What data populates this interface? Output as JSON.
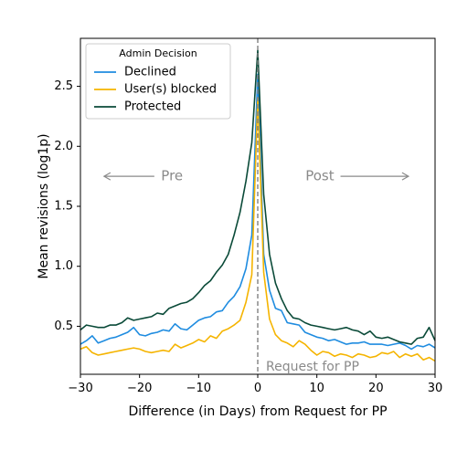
{
  "chart_data": {
    "type": "line",
    "xlabel": "Difference (in Days) from Request for PP",
    "ylabel": "Mean revisions (log1p)",
    "xlim": [
      -30,
      30
    ],
    "ylim": [
      0.1,
      2.9
    ],
    "xticks": [
      -30,
      -20,
      -10,
      0,
      10,
      20,
      30
    ],
    "xtick_labels": [
      "−30",
      "−20",
      "−10",
      "0",
      "10",
      "20",
      "30"
    ],
    "yticks": [
      0.5,
      1.0,
      1.5,
      2.0,
      2.5
    ],
    "ytick_labels": [
      "0.5",
      "1.0",
      "1.5",
      "2.0",
      "2.5"
    ],
    "grid": false,
    "legend": {
      "title": "Admin Decision",
      "placement": "top-left"
    },
    "annotations": {
      "pre": "Pre",
      "post": "Post",
      "request": "Request for PP"
    },
    "x": [
      -30,
      -29,
      -28,
      -27,
      -26,
      -25,
      -24,
      -23,
      -22,
      -21,
      -20,
      -19,
      -18,
      -17,
      -16,
      -15,
      -14,
      -13,
      -12,
      -11,
      -10,
      -9,
      -8,
      -7,
      -6,
      -5,
      -4,
      -3,
      -2,
      -1,
      0,
      1,
      2,
      3,
      4,
      5,
      6,
      7,
      8,
      9,
      10,
      11,
      12,
      13,
      14,
      15,
      16,
      17,
      18,
      19,
      20,
      21,
      22,
      23,
      24,
      25,
      26,
      27,
      28,
      29,
      30
    ],
    "series": [
      {
        "name": "Declined",
        "color": "#1f8ce0",
        "values": [
          0.35,
          0.38,
          0.42,
          0.36,
          0.38,
          0.4,
          0.41,
          0.43,
          0.45,
          0.49,
          0.43,
          0.42,
          0.44,
          0.45,
          0.47,
          0.46,
          0.52,
          0.48,
          0.47,
          0.51,
          0.55,
          0.57,
          0.58,
          0.62,
          0.63,
          0.7,
          0.75,
          0.83,
          0.98,
          1.26,
          2.6,
          1.1,
          0.8,
          0.65,
          0.63,
          0.53,
          0.52,
          0.51,
          0.45,
          0.43,
          0.41,
          0.4,
          0.38,
          0.39,
          0.37,
          0.35,
          0.36,
          0.36,
          0.37,
          0.35,
          0.35,
          0.35,
          0.34,
          0.35,
          0.36,
          0.34,
          0.31,
          0.34,
          0.33,
          0.35,
          0.32
        ]
      },
      {
        "name": "User(s) blocked",
        "color": "#f5b400",
        "values": [
          0.31,
          0.33,
          0.28,
          0.26,
          0.27,
          0.28,
          0.29,
          0.3,
          0.31,
          0.32,
          0.31,
          0.29,
          0.28,
          0.29,
          0.3,
          0.29,
          0.35,
          0.32,
          0.34,
          0.36,
          0.39,
          0.37,
          0.42,
          0.4,
          0.46,
          0.48,
          0.51,
          0.55,
          0.7,
          0.93,
          2.4,
          0.95,
          0.56,
          0.43,
          0.38,
          0.36,
          0.33,
          0.38,
          0.35,
          0.3,
          0.26,
          0.29,
          0.28,
          0.25,
          0.27,
          0.26,
          0.24,
          0.27,
          0.26,
          0.24,
          0.25,
          0.28,
          0.27,
          0.29,
          0.24,
          0.27,
          0.25,
          0.27,
          0.22,
          0.24,
          0.21
        ]
      },
      {
        "name": "Protected",
        "color": "#0a4a38",
        "values": [
          0.47,
          0.51,
          0.5,
          0.49,
          0.49,
          0.51,
          0.51,
          0.53,
          0.57,
          0.55,
          0.56,
          0.57,
          0.58,
          0.61,
          0.6,
          0.65,
          0.67,
          0.69,
          0.7,
          0.73,
          0.78,
          0.84,
          0.88,
          0.95,
          1.01,
          1.1,
          1.26,
          1.45,
          1.71,
          2.03,
          2.8,
          1.6,
          1.1,
          0.86,
          0.73,
          0.63,
          0.57,
          0.56,
          0.53,
          0.51,
          0.5,
          0.49,
          0.48,
          0.47,
          0.48,
          0.49,
          0.47,
          0.46,
          0.43,
          0.46,
          0.41,
          0.4,
          0.41,
          0.39,
          0.37,
          0.36,
          0.35,
          0.4,
          0.41,
          0.49,
          0.38
        ]
      }
    ]
  }
}
